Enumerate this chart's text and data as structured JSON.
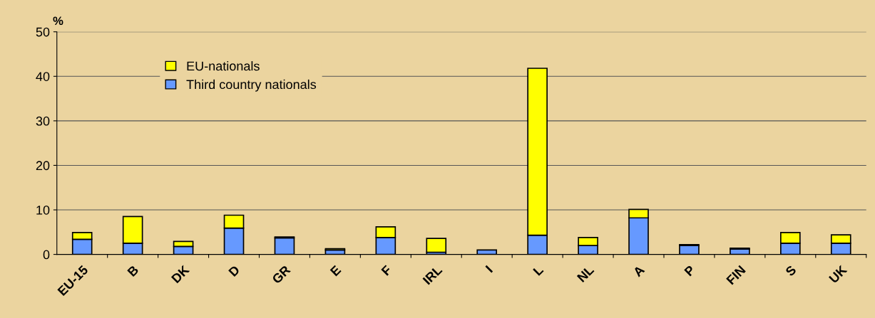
{
  "chart_data": {
    "type": "bar",
    "stacked": true,
    "ylabel": "%",
    "categories": [
      "EU-15",
      "B",
      "DK",
      "D",
      "GR",
      "E",
      "F",
      "IRL",
      "I",
      "L",
      "NL",
      "A",
      "P",
      "FIN",
      "S",
      "UK"
    ],
    "series": [
      {
        "name": "Third country nationals",
        "color": "#6699ff",
        "values": [
          3.4,
          2.5,
          1.8,
          5.9,
          3.7,
          1.0,
          3.8,
          0.5,
          1.0,
          4.3,
          2.0,
          8.2,
          2.0,
          1.2,
          2.5,
          2.5
        ]
      },
      {
        "name": "EU-nationals",
        "color": "#ffff00",
        "values": [
          1.5,
          6.0,
          1.1,
          2.9,
          0.2,
          0.3,
          2.4,
          3.1,
          null,
          37.5,
          1.8,
          1.9,
          0.2,
          0.2,
          2.4,
          1.9
        ]
      }
    ],
    "ylim": [
      0,
      50
    ],
    "yticks": [
      0,
      10,
      20,
      30,
      40,
      50
    ],
    "grid": "y",
    "legend": "top left"
  }
}
